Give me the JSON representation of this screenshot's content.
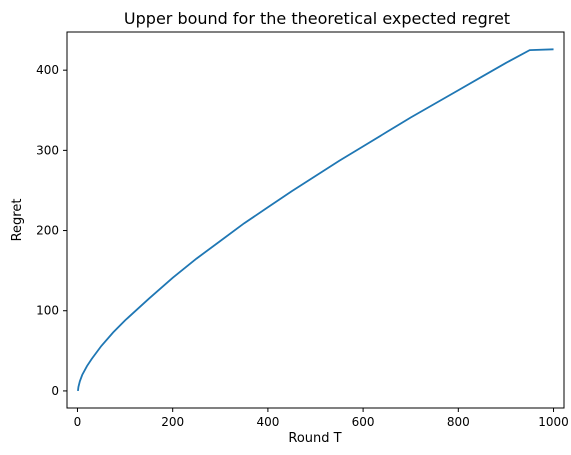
{
  "chart_data": {
    "type": "line",
    "title": "Upper bound for the theoretical expected regret",
    "xlabel": "Round T",
    "ylabel": "Regret",
    "xlim": [
      -22,
      1022
    ],
    "ylim": [
      -21.3,
      447.6
    ],
    "xticks": [
      0,
      200,
      400,
      600,
      800,
      1000
    ],
    "yticks": [
      0,
      100,
      200,
      300,
      400
    ],
    "grid": false,
    "series": [
      {
        "color": "#1f77b4",
        "x": [
          1,
          2,
          5,
          10,
          20,
          30,
          50,
          75,
          100,
          150,
          200,
          250,
          300,
          350,
          400,
          450,
          500,
          550,
          600,
          650,
          700,
          750,
          800,
          850,
          900,
          950,
          1000
        ],
        "y": [
          0,
          5,
          12,
          20,
          31,
          40,
          56,
          73,
          88,
          115,
          141,
          165,
          187,
          209,
          229,
          249,
          268,
          287,
          305,
          323,
          341,
          358,
          375,
          392,
          409,
          425,
          426
        ]
      }
    ]
  }
}
